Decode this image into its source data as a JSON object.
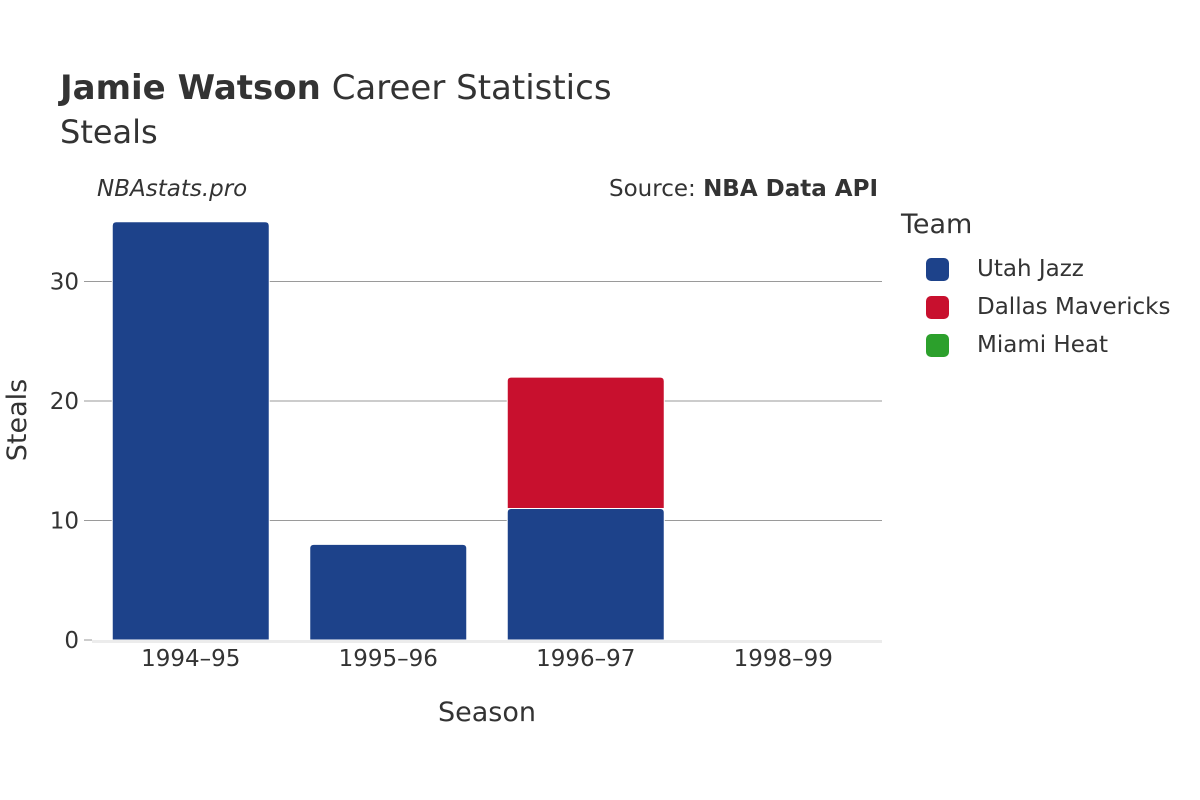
{
  "header": {
    "player_name": "Jamie Watson",
    "title_rest": "Career Statistics",
    "subtitle": "Steals",
    "watermark": "NBAstats.pro",
    "source_prefix": "Source: ",
    "source_name": "NBA Data API"
  },
  "legend": {
    "title": "Team",
    "items": [
      {
        "label": "Utah Jazz",
        "color": "#1d428a"
      },
      {
        "label": "Dallas Mavericks",
        "color": "#c8102e"
      },
      {
        "label": "Miami Heat",
        "color": "#2ca02c"
      }
    ]
  },
  "chart_data": {
    "type": "bar",
    "stacked": true,
    "title": "Jamie Watson Career Statistics",
    "subtitle": "Steals",
    "xlabel": "Season",
    "ylabel": "Steals",
    "categories": [
      "1994–95",
      "1995–96",
      "1996–97",
      "1998–99"
    ],
    "ylim": [
      0,
      36
    ],
    "yticks": [
      0,
      10,
      20,
      30
    ],
    "grid": true,
    "legend_position": "right",
    "series": [
      {
        "name": "Utah Jazz",
        "color": "#1d428a",
        "values": [
          35,
          8,
          11,
          0
        ]
      },
      {
        "name": "Dallas Mavericks",
        "color": "#c8102e",
        "values": [
          0,
          0,
          11,
          0
        ]
      },
      {
        "name": "Miami Heat",
        "color": "#2ca02c",
        "values": [
          0,
          0,
          0,
          0
        ]
      }
    ]
  }
}
